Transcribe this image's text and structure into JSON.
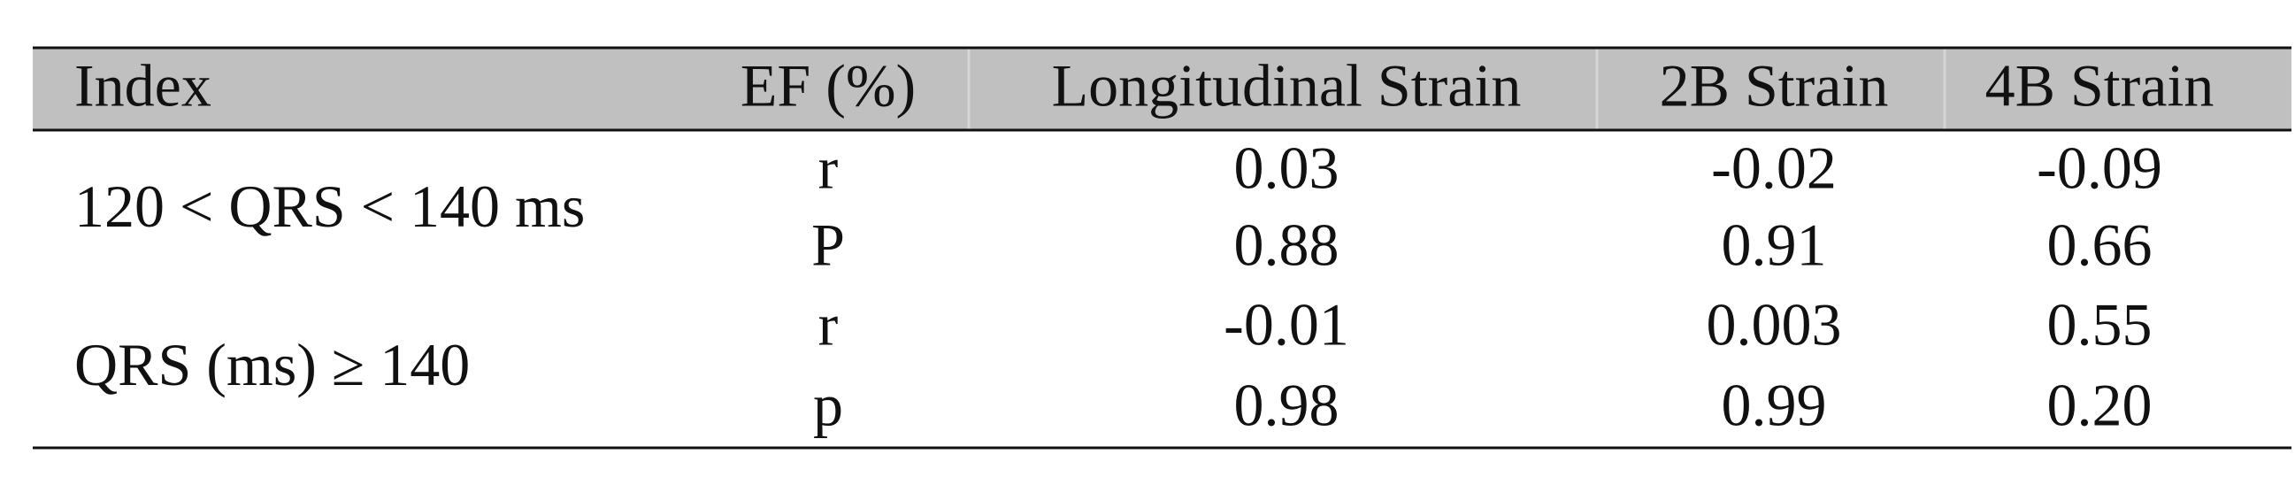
{
  "table": {
    "header": [
      "Index",
      "EF (%)",
      "Longitudinal Strain",
      "2B Strain",
      "4B Strain"
    ],
    "groups": [
      {
        "label": "120 < QRS < 140 ms",
        "rows": [
          {
            "stat": "r",
            "values": [
              "0.03",
              "-0.02",
              "-0.09"
            ]
          },
          {
            "stat": "P",
            "values": [
              "0.88",
              "0.91",
              "0.66"
            ]
          }
        ]
      },
      {
        "label": "QRS (ms) ≥ 140",
        "rows": [
          {
            "stat": "r",
            "values": [
              "-0.01",
              "0.003",
              "0.55"
            ]
          },
          {
            "stat": "p",
            "values": [
              "0.98",
              "0.99",
              "0.20"
            ]
          }
        ]
      }
    ]
  }
}
